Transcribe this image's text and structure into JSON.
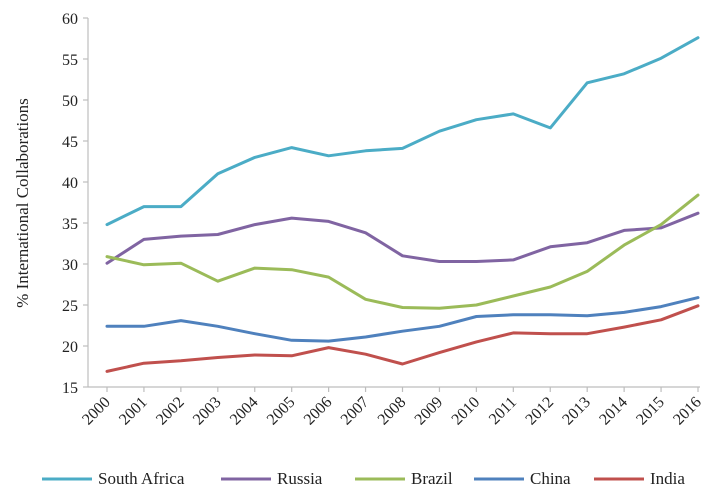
{
  "chart_data": {
    "type": "line",
    "title": "",
    "xlabel": "",
    "ylabel": "% International Collaborations",
    "ylim": [
      15,
      60
    ],
    "yticks": [
      "15",
      "20",
      "25",
      "30",
      "35",
      "40",
      "45",
      "50",
      "55",
      "60"
    ],
    "x": [
      "2000",
      "2001",
      "2002",
      "2003",
      "2004",
      "2005",
      "2006",
      "2007",
      "2008",
      "2009",
      "2010",
      "2011",
      "2012",
      "2013",
      "2014",
      "2015",
      "2016"
    ],
    "grid": false,
    "legend_position": "bottom",
    "series": [
      {
        "name": "South Africa",
        "color": "#4bacc6",
        "values": [
          34.8,
          37.0,
          37.0,
          41.0,
          43.0,
          44.2,
          43.2,
          43.8,
          44.1,
          46.2,
          47.6,
          48.3,
          46.6,
          52.1,
          53.2,
          55.1,
          57.6
        ]
      },
      {
        "name": "Russia",
        "color": "#8064a2",
        "values": [
          30.1,
          33.0,
          33.4,
          33.6,
          34.8,
          35.6,
          35.2,
          33.8,
          31.0,
          30.3,
          30.3,
          30.5,
          32.1,
          32.6,
          34.1,
          34.4,
          36.2
        ]
      },
      {
        "name": "Brazil",
        "color": "#9bbb59",
        "values": [
          30.9,
          29.9,
          30.1,
          27.9,
          29.5,
          29.3,
          28.4,
          25.7,
          24.7,
          24.6,
          25.0,
          26.1,
          27.2,
          29.1,
          32.3,
          34.8,
          38.4
        ]
      },
      {
        "name": "China",
        "color": "#4f81bd",
        "values": [
          22.4,
          22.4,
          23.1,
          22.4,
          21.5,
          20.7,
          20.6,
          21.1,
          21.8,
          22.4,
          23.6,
          23.8,
          23.8,
          23.7,
          24.1,
          24.8,
          25.9
        ]
      },
      {
        "name": "India",
        "color": "#c0504d",
        "values": [
          16.9,
          17.9,
          18.2,
          18.6,
          18.9,
          18.8,
          19.8,
          19.0,
          17.8,
          19.2,
          20.5,
          21.6,
          21.5,
          21.5,
          22.3,
          23.2,
          24.9
        ]
      }
    ]
  }
}
